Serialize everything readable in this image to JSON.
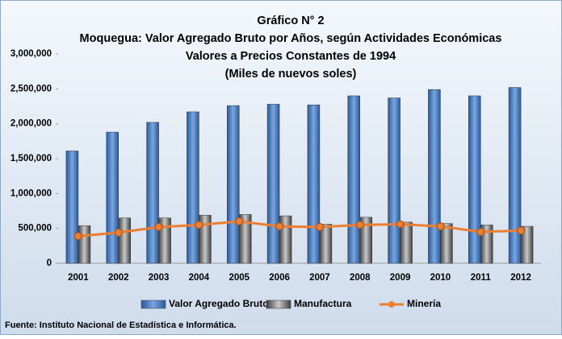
{
  "chart_data": {
    "type": "bar",
    "title": [
      "Gráfico N° 2",
      "Moquegua: Valor Agregado Bruto por Años, según Actividades Económicas",
      "Valores a Precios Constantes de 1994",
      "(Miles de nuevos soles)"
    ],
    "categories": [
      "2001",
      "2002",
      "2003",
      "2004",
      "2005",
      "2006",
      "2007",
      "2008",
      "2009",
      "2010",
      "2011",
      "2012"
    ],
    "series": [
      {
        "name": "Valor Agregado Bruto",
        "type": "bar",
        "color": "#4f81bd",
        "values": [
          1610000,
          1880000,
          2020000,
          2170000,
          2260000,
          2280000,
          2270000,
          2400000,
          2370000,
          2490000,
          2400000,
          2520000
        ]
      },
      {
        "name": "Manufactura",
        "type": "bar",
        "color": "#7f7f7f",
        "values": [
          540000,
          650000,
          650000,
          690000,
          700000,
          680000,
          560000,
          660000,
          590000,
          570000,
          550000,
          530000
        ]
      },
      {
        "name": "Minería",
        "type": "line",
        "color": "#ed7d31",
        "values": [
          390000,
          440000,
          520000,
          550000,
          600000,
          530000,
          520000,
          550000,
          560000,
          530000,
          450000,
          470000
        ]
      }
    ],
    "ylim": [
      0,
      3000000
    ],
    "yticks": [
      0,
      {
        "value": 500000,
        "label": "500,000"
      },
      {
        "value": 1000000,
        "label": "1,000,000"
      },
      {
        "value": 1500000,
        "label": "1,500,000"
      },
      {
        "value": 2000000,
        "label": "2,000,000"
      },
      {
        "value": 2500000,
        "label": "2,500,000"
      },
      {
        "value": 3000000,
        "label": "3,000,000"
      }
    ],
    "grid": false,
    "legend": "bottom",
    "source": "Fuente: Instituto Nacional de Estadística e Informática."
  }
}
